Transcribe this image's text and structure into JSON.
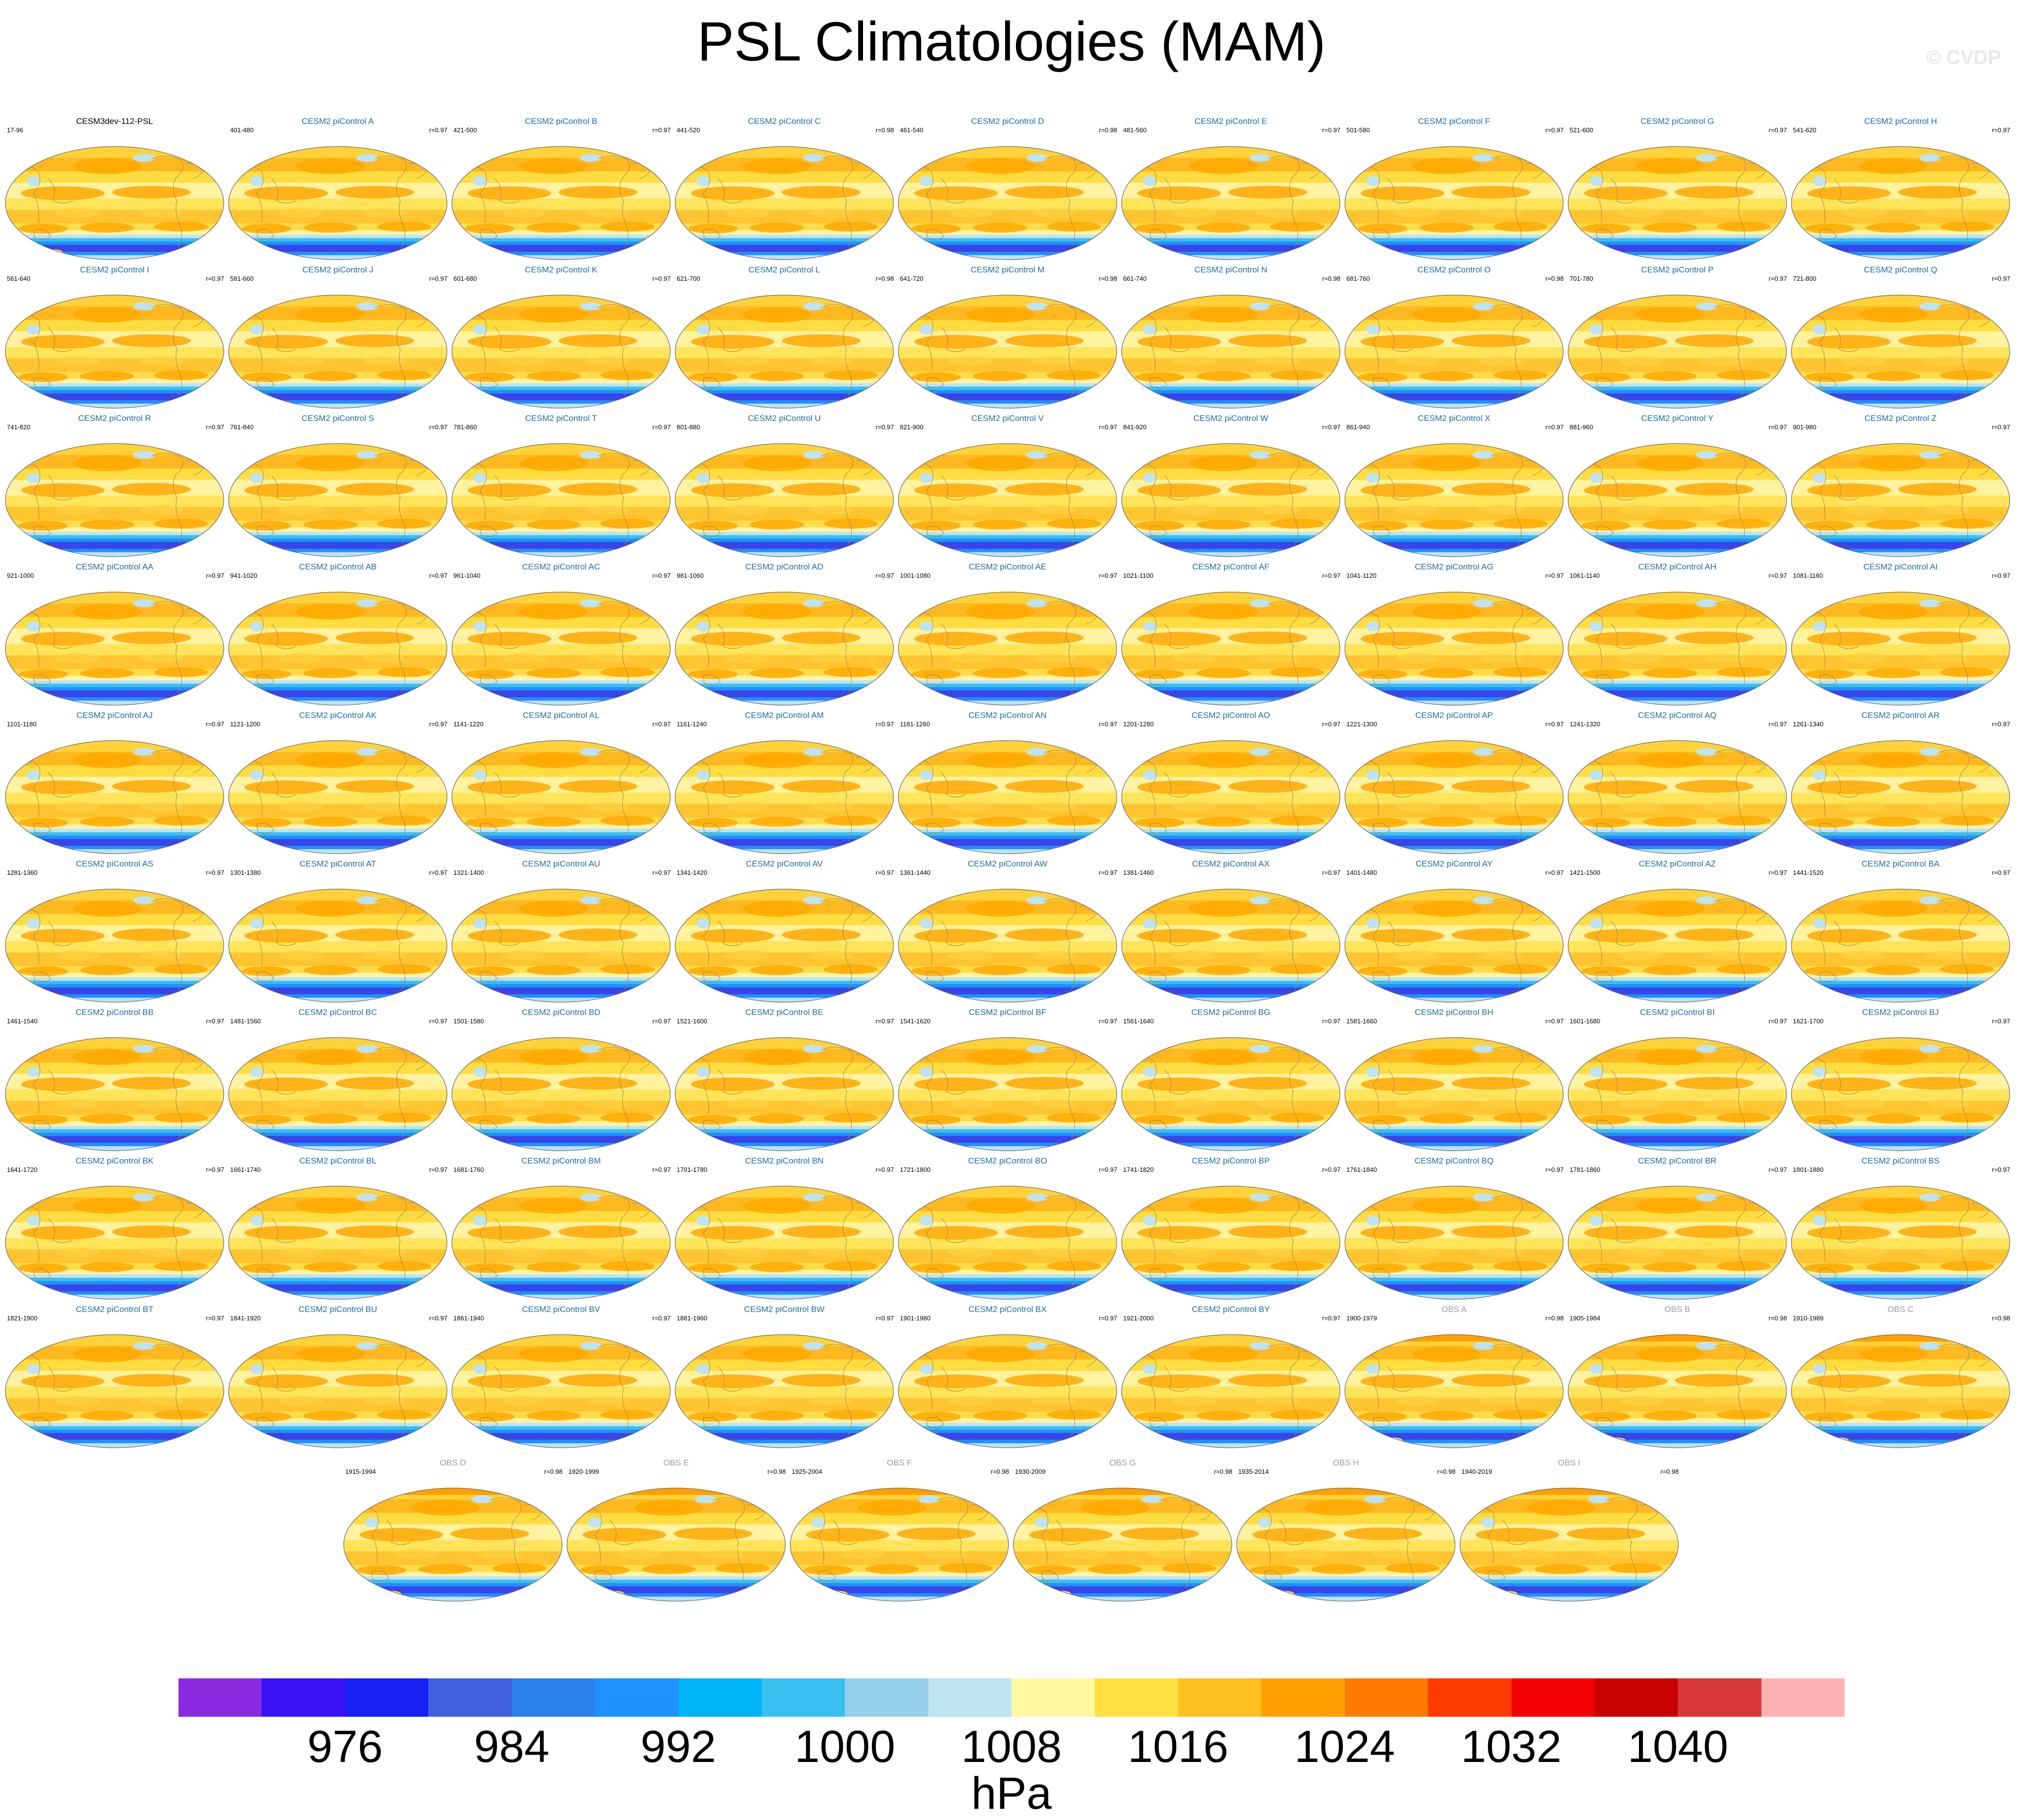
{
  "title": "PSL Climatologies (MAM)",
  "copyright": "© CVDP",
  "chart_data": {
    "type": "heatmap",
    "variable": "PSL",
    "season": "MAM",
    "units": "hPa",
    "colorbar": {
      "levels": [
        972,
        976,
        980,
        984,
        988,
        992,
        996,
        1000,
        1004,
        1008,
        1012,
        1016,
        1020,
        1024,
        1028,
        1032,
        1036,
        1040,
        1044
      ],
      "labels": [
        "976",
        "984",
        "992",
        "1000",
        "1008",
        "1016",
        "1024",
        "1032",
        "1040"
      ],
      "colors": [
        "#8a2be2",
        "#3a12f5",
        "#1620f0",
        "#4060e0",
        "#2a7fe8",
        "#1e90ff",
        "#00b4f8",
        "#38c0f0",
        "#98d0ec",
        "#bde3f4",
        "#fff8a0",
        "#ffe040",
        "#ffc020",
        "#ffa000",
        "#ff7a00",
        "#ff3a00",
        "#f40000",
        "#c80000",
        "#d83838",
        "#ffb0b0"
      ]
    },
    "panels": [
      {
        "title": "CESM3dev-112-PSL",
        "years": "17-96",
        "r": ""
      },
      {
        "title": "CESM2 piControl A",
        "years": "401-480",
        "r": "r=0.97"
      },
      {
        "title": "CESM2 piControl B",
        "years": "421-500",
        "r": "r=0.97"
      },
      {
        "title": "CESM2 piControl C",
        "years": "441-520",
        "r": "r=0.98"
      },
      {
        "title": "CESM2 piControl D",
        "years": "461-540",
        "r": "r=0.98"
      },
      {
        "title": "CESM2 piControl E",
        "years": "481-560",
        "r": "r=0.97"
      },
      {
        "title": "CESM2 piControl F",
        "years": "501-580",
        "r": "r=0.97"
      },
      {
        "title": "CESM2 piControl G",
        "years": "521-600",
        "r": "r=0.97"
      },
      {
        "title": "CESM2 piControl H",
        "years": "541-620",
        "r": "r=0.97"
      },
      {
        "title": "CESM2 piControl I",
        "years": "561-640",
        "r": "r=0.97"
      },
      {
        "title": "CESM2 piControl J",
        "years": "581-660",
        "r": "r=0.97"
      },
      {
        "title": "CESM2 piControl K",
        "years": "601-680",
        "r": "r=0.97"
      },
      {
        "title": "CESM2 piControl L",
        "years": "621-700",
        "r": "r=0.98"
      },
      {
        "title": "CESM2 piControl M",
        "years": "641-720",
        "r": "r=0.98"
      },
      {
        "title": "CESM2 piControl N",
        "years": "661-740",
        "r": "r=0.98"
      },
      {
        "title": "CESM2 piControl O",
        "years": "681-760",
        "r": "r=0.98"
      },
      {
        "title": "CESM2 piControl P",
        "years": "701-780",
        "r": "r=0.97"
      },
      {
        "title": "CESM2 piControl Q",
        "years": "721-800",
        "r": "r=0.97"
      },
      {
        "title": "CESM2 piControl R",
        "years": "741-820",
        "r": "r=0.97"
      },
      {
        "title": "CESM2 piControl S",
        "years": "761-840",
        "r": "r=0.97"
      },
      {
        "title": "CESM2 piControl T",
        "years": "781-860",
        "r": "r=0.97"
      },
      {
        "title": "CESM2 piControl U",
        "years": "801-880",
        "r": "r=0.97"
      },
      {
        "title": "CESM2 piControl V",
        "years": "821-900",
        "r": "r=0.97"
      },
      {
        "title": "CESM2 piControl W",
        "years": "841-920",
        "r": "r=0.97"
      },
      {
        "title": "CESM2 piControl X",
        "years": "861-940",
        "r": "r=0.97"
      },
      {
        "title": "CESM2 piControl Y",
        "years": "881-960",
        "r": "r=0.97"
      },
      {
        "title": "CESM2 piControl Z",
        "years": "901-980",
        "r": "r=0.97"
      },
      {
        "title": "CESM2 piControl AA",
        "years": "921-1000",
        "r": "r=0.97"
      },
      {
        "title": "CESM2 piControl AB",
        "years": "941-1020",
        "r": "r=0.97"
      },
      {
        "title": "CESM2 piControl AC",
        "years": "961-1040",
        "r": "r=0.97"
      },
      {
        "title": "CESM2 piControl AD",
        "years": "981-1060",
        "r": "r=0.97"
      },
      {
        "title": "CESM2 piControl AE",
        "years": "1001-1080",
        "r": "r=0.97"
      },
      {
        "title": "CESM2 piControl AF",
        "years": "1021-1100",
        "r": "r=0.97"
      },
      {
        "title": "CESM2 piControl AG",
        "years": "1041-1120",
        "r": "r=0.97"
      },
      {
        "title": "CESM2 piControl AH",
        "years": "1061-1140",
        "r": "r=0.97"
      },
      {
        "title": "CESM2 piControl AI",
        "years": "1081-1160",
        "r": "r=0.97"
      },
      {
        "title": "CESM2 piControl AJ",
        "years": "1101-1180",
        "r": "r=0.97"
      },
      {
        "title": "CESM2 piControl AK",
        "years": "1121-1200",
        "r": "r=0.97"
      },
      {
        "title": "CESM2 piControl AL",
        "years": "1141-1220",
        "r": "r=0.97"
      },
      {
        "title": "CESM2 piControl AM",
        "years": "1161-1240",
        "r": "r=0.97"
      },
      {
        "title": "CESM2 piControl AN",
        "years": "1181-1260",
        "r": "r=0.97"
      },
      {
        "title": "CESM2 piControl AO",
        "years": "1201-1280",
        "r": "r=0.97"
      },
      {
        "title": "CESM2 piControl AP",
        "years": "1221-1300",
        "r": "r=0.97"
      },
      {
        "title": "CESM2 piControl AQ",
        "years": "1241-1320",
        "r": "r=0.97"
      },
      {
        "title": "CESM2 piControl AR",
        "years": "1261-1340",
        "r": "r=0.97"
      },
      {
        "title": "CESM2 piControl AS",
        "years": "1281-1360",
        "r": "r=0.97"
      },
      {
        "title": "CESM2 piControl AT",
        "years": "1301-1380",
        "r": "r=0.97"
      },
      {
        "title": "CESM2 piControl AU",
        "years": "1321-1400",
        "r": "r=0.97"
      },
      {
        "title": "CESM2 piControl AV",
        "years": "1341-1420",
        "r": "r=0.97"
      },
      {
        "title": "CESM2 piControl AW",
        "years": "1361-1440",
        "r": "r=0.97"
      },
      {
        "title": "CESM2 piControl AX",
        "years": "1381-1460",
        "r": "r=0.97"
      },
      {
        "title": "CESM2 piControl AY",
        "years": "1401-1480",
        "r": "r=0.97"
      },
      {
        "title": "CESM2 piControl AZ",
        "years": "1421-1500",
        "r": "r=0.97"
      },
      {
        "title": "CESM2 piControl BA",
        "years": "1441-1520",
        "r": "r=0.97"
      },
      {
        "title": "CESM2 piControl BB",
        "years": "1461-1540",
        "r": "r=0.97"
      },
      {
        "title": "CESM2 piControl BC",
        "years": "1481-1560",
        "r": "r=0.97"
      },
      {
        "title": "CESM2 piControl BD",
        "years": "1501-1580",
        "r": "r=0.97"
      },
      {
        "title": "CESM2 piControl BE",
        "years": "1521-1600",
        "r": "r=0.97"
      },
      {
        "title": "CESM2 piControl BF",
        "years": "1541-1620",
        "r": "r=0.97"
      },
      {
        "title": "CESM2 piControl BG",
        "years": "1561-1640",
        "r": "r=0.97"
      },
      {
        "title": "CESM2 piControl BH",
        "years": "1581-1660",
        "r": "r=0.97"
      },
      {
        "title": "CESM2 piControl BI",
        "years": "1601-1680",
        "r": "r=0.97"
      },
      {
        "title": "CESM2 piControl BJ",
        "years": "1621-1700",
        "r": "r=0.97"
      },
      {
        "title": "CESM2 piControl BK",
        "years": "1641-1720",
        "r": "r=0.97"
      },
      {
        "title": "CESM2 piControl BL",
        "years": "1661-1740",
        "r": "r=0.97"
      },
      {
        "title": "CESM2 piControl BM",
        "years": "1681-1760",
        "r": "r=0.97"
      },
      {
        "title": "CESM2 piControl BN",
        "years": "1701-1780",
        "r": "r=0.97"
      },
      {
        "title": "CESM2 piControl BO",
        "years": "1721-1800",
        "r": "r=0.97"
      },
      {
        "title": "CESM2 piControl BP",
        "years": "1741-1820",
        "r": "r=0.97"
      },
      {
        "title": "CESM2 piControl BQ",
        "years": "1761-1840",
        "r": "r=0.97"
      },
      {
        "title": "CESM2 piControl BR",
        "years": "1781-1860",
        "r": "r=0.97"
      },
      {
        "title": "CESM2 piControl BS",
        "years": "1801-1880",
        "r": "r=0.97"
      },
      {
        "title": "CESM2 piControl BT",
        "years": "1821-1900",
        "r": "r=0.97"
      },
      {
        "title": "CESM2 piControl BU",
        "years": "1841-1920",
        "r": "r=0.97"
      },
      {
        "title": "CESM2 piControl BV",
        "years": "1861-1940",
        "r": "r=0.97"
      },
      {
        "title": "CESM2 piControl BW",
        "years": "1881-1960",
        "r": "r=0.97"
      },
      {
        "title": "CESM2 piControl BX",
        "years": "1901-1980",
        "r": "r=0.97"
      },
      {
        "title": "CESM2 piControl BY",
        "years": "1921-2000",
        "r": "r=0.97"
      },
      {
        "title": "OBS A",
        "years": "1900-1979",
        "r": "r=0.98"
      },
      {
        "title": "OBS B",
        "years": "1905-1984",
        "r": "r=0.98"
      },
      {
        "title": "OBS C",
        "years": "1910-1989",
        "r": "r=0.98"
      },
      {
        "title": "OBS D",
        "years": "1915-1994",
        "r": "r=0.98"
      },
      {
        "title": "OBS E",
        "years": "1920-1999",
        "r": "r=0.98"
      },
      {
        "title": "OBS F",
        "years": "1925-2004",
        "r": "r=0.98"
      },
      {
        "title": "OBS G",
        "years": "1930-2009",
        "r": "r=0.98"
      },
      {
        "title": "OBS H",
        "years": "1935-2014",
        "r": "r=0.98"
      },
      {
        "title": "OBS I",
        "years": "1940-2019",
        "r": "r=0.98"
      }
    ]
  }
}
